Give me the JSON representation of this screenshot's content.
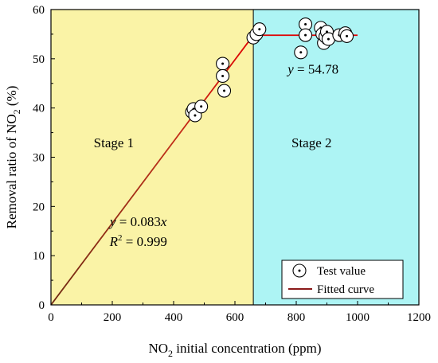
{
  "chart_data": {
    "type": "scatter",
    "xlabel": {
      "pre": "NO",
      "sub": "2",
      "post": " initial concentration (ppm)"
    },
    "ylabel": {
      "pre": "Removal ratio of NO",
      "sub": "2",
      "post": " (%)"
    },
    "xlim": [
      0,
      1200
    ],
    "ylim": [
      0,
      60
    ],
    "xticks": [
      0,
      200,
      400,
      600,
      800,
      1000,
      1200
    ],
    "yticks": [
      0,
      10,
      20,
      30,
      40,
      50,
      60
    ],
    "stage_boundary_x": 660,
    "regions": [
      {
        "label": "Stage 1",
        "x_range": [
          0,
          660
        ],
        "color": "#FAF3A6"
      },
      {
        "label": "Stage 2",
        "x_range": [
          660,
          1200
        ],
        "color": "#ADF4F4"
      }
    ],
    "series": [
      {
        "name": "Test value",
        "kind": "scatter",
        "points": [
          [
            460,
            39.2
          ],
          [
            465,
            39.8
          ],
          [
            470,
            38.5
          ],
          [
            490,
            40.3
          ],
          [
            560,
            49.0
          ],
          [
            560,
            46.5
          ],
          [
            565,
            43.5
          ],
          [
            660,
            54.3
          ],
          [
            670,
            55.0
          ],
          [
            680,
            56.0
          ],
          [
            815,
            51.3
          ],
          [
            830,
            57.0
          ],
          [
            830,
            54.8
          ],
          [
            880,
            56.3
          ],
          [
            885,
            55.0
          ],
          [
            890,
            53.2
          ],
          [
            895,
            54.5
          ],
          [
            900,
            55.5
          ],
          [
            905,
            54.0
          ],
          [
            940,
            54.8
          ],
          [
            960,
            55.2
          ],
          [
            965,
            54.6
          ]
        ]
      },
      {
        "name": "Fitted curve",
        "kind": "line",
        "color": "#E00000",
        "segments": [
          {
            "x": [
              0,
              660
            ],
            "y": [
              0,
              54.78
            ]
          },
          {
            "x": [
              660,
              1000
            ],
            "y": [
              54.78,
              54.78
            ]
          }
        ]
      }
    ],
    "annotations": [
      {
        "id": "stage1",
        "text": "Stage 1",
        "at": [
          205,
          32
        ]
      },
      {
        "id": "stage2",
        "text": "Stage 2",
        "at": [
          850,
          32
        ]
      },
      {
        "id": "eq2",
        "var": "y",
        "rest": " = 54.78",
        "at": [
          855,
          47
        ]
      },
      {
        "id": "eq1",
        "var": "y",
        "rest": " = 0.083",
        "var2": "x",
        "at": [
          285,
          16
        ]
      },
      {
        "id": "r2",
        "var": "R",
        "sup": "2",
        "rest": " = 0.999",
        "at": [
          285,
          12
        ]
      }
    ],
    "legend": {
      "placement": "bottom-right",
      "items": [
        {
          "label": "Test value",
          "symbol": "circle-dot"
        },
        {
          "label": "Fitted curve",
          "symbol": "line",
          "color": "#8B1A1A"
        }
      ]
    },
    "grid": false
  }
}
